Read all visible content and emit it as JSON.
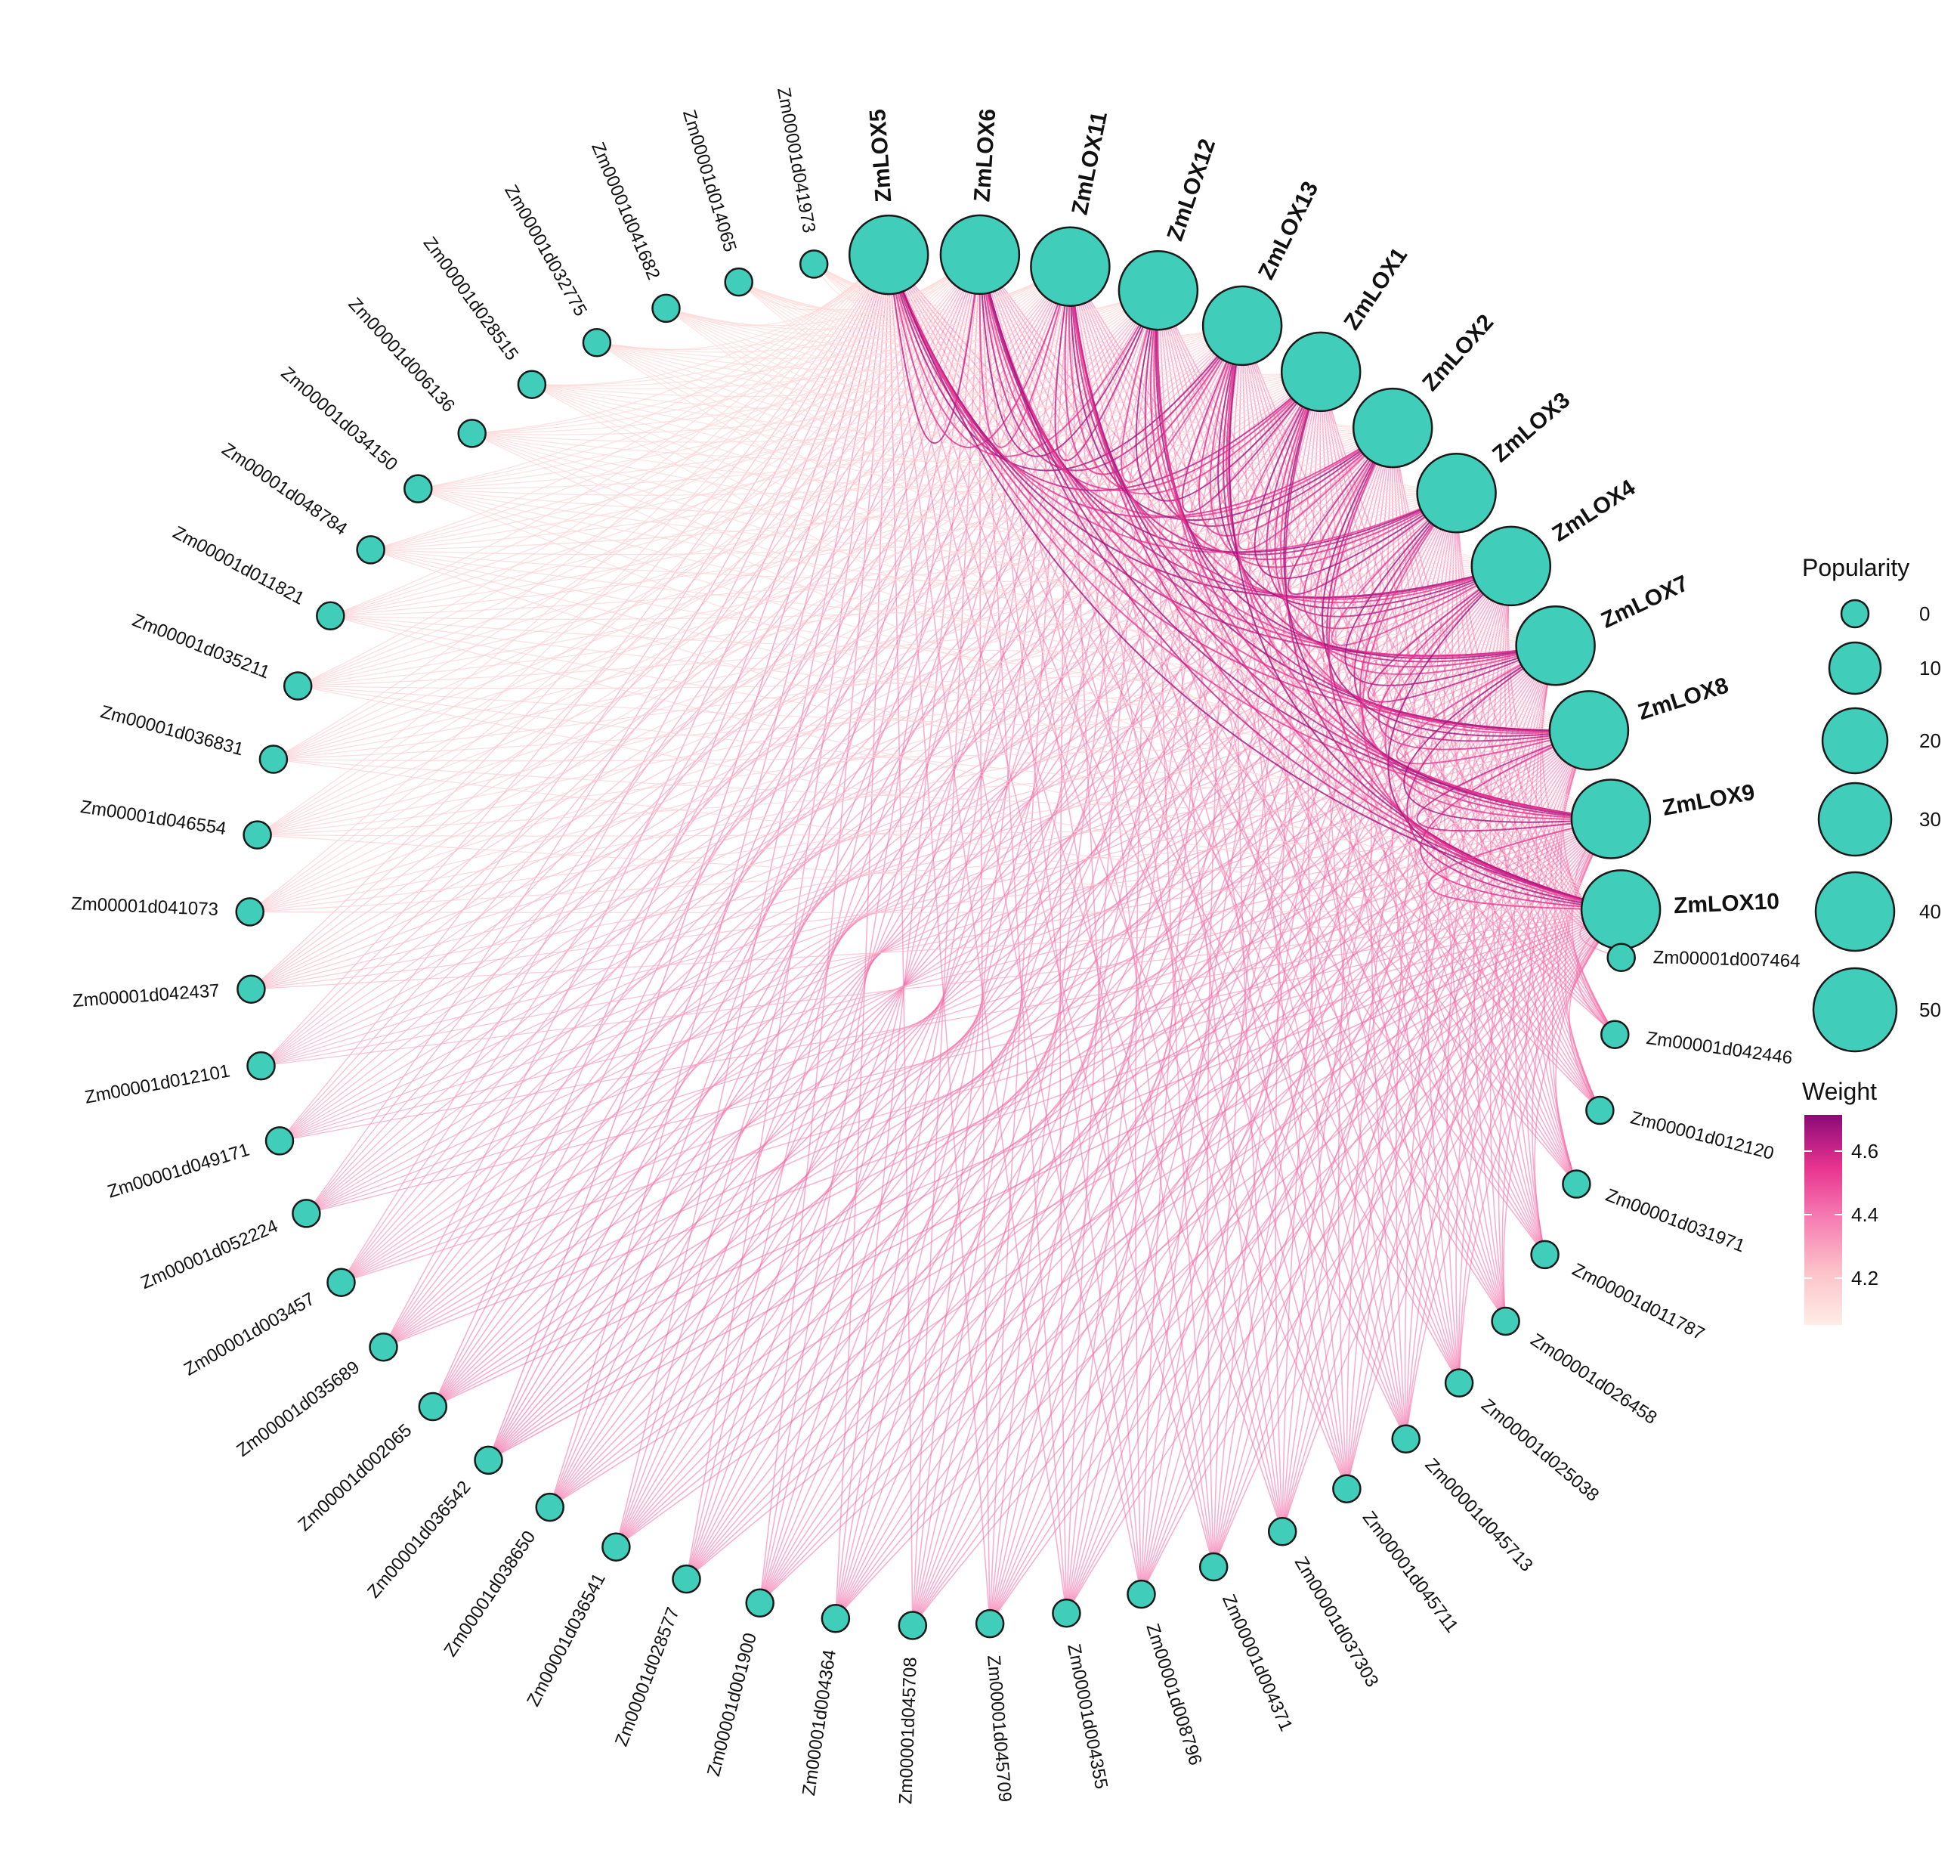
{
  "network": {
    "lox_nodes": [
      {
        "label": "ZmLOX5"
      },
      {
        "label": "ZmLOX6"
      },
      {
        "label": "ZmLOX11"
      },
      {
        "label": "ZmLOX12"
      },
      {
        "label": "ZmLOX13"
      },
      {
        "label": "ZmLOX1"
      },
      {
        "label": "ZmLOX2"
      },
      {
        "label": "ZmLOX3"
      },
      {
        "label": "ZmLOX4"
      },
      {
        "label": "ZmLOX7"
      },
      {
        "label": "ZmLOX8"
      },
      {
        "label": "ZmLOX9"
      },
      {
        "label": "ZmLOX10"
      }
    ],
    "gene_nodes": [
      "Zm00001d007464",
      "Zm00001d042446",
      "Zm00001d012120",
      "Zm00001d031971",
      "Zm00001d011787",
      "Zm00001d026458",
      "Zm00001d025038",
      "Zm00001d045713",
      "Zm00001d045711",
      "Zm00001d037303",
      "Zm00001d004371",
      "Zm00001d008796",
      "Zm00001d004355",
      "Zm00001d045709",
      "Zm00001d045708",
      "Zm00001d004364",
      "Zm00001d001900",
      "Zm00001d028577",
      "Zm00001d036541",
      "Zm00001d038650",
      "Zm00001d036542",
      "Zm00001d002065",
      "Zm00001d035689",
      "Zm00001d003457",
      "Zm00001d052224",
      "Zm00001d049171",
      "Zm00001d012101",
      "Zm00001d042437",
      "Zm00001d041073",
      "Zm00001d046554",
      "Zm00001d036831",
      "Zm00001d035211",
      "Zm00001d011821",
      "Zm00001d048784",
      "Zm00001d034150",
      "Zm00001d006136",
      "Zm00001d028515",
      "Zm00001d032775",
      "Zm00001d041682",
      "Zm00001d014065",
      "Zm00001d041973"
    ],
    "node_color": "#40CDB9",
    "edge_colors": {
      "low": "#FDE6DF",
      "mid": "#F06AA6",
      "high": "#8B0A78"
    }
  },
  "legend": {
    "popularity": {
      "title": "Popularity",
      "ticks": [
        "0",
        "10",
        "20",
        "30",
        "40",
        "50"
      ]
    },
    "weight": {
      "title": "Weight",
      "ticks": [
        "4.6",
        "4.4",
        "4.2"
      ],
      "gradient": [
        "#8B0A78",
        "#E8338F",
        "#F77FB4",
        "#FCC3C9",
        "#FEEDE6"
      ]
    }
  }
}
